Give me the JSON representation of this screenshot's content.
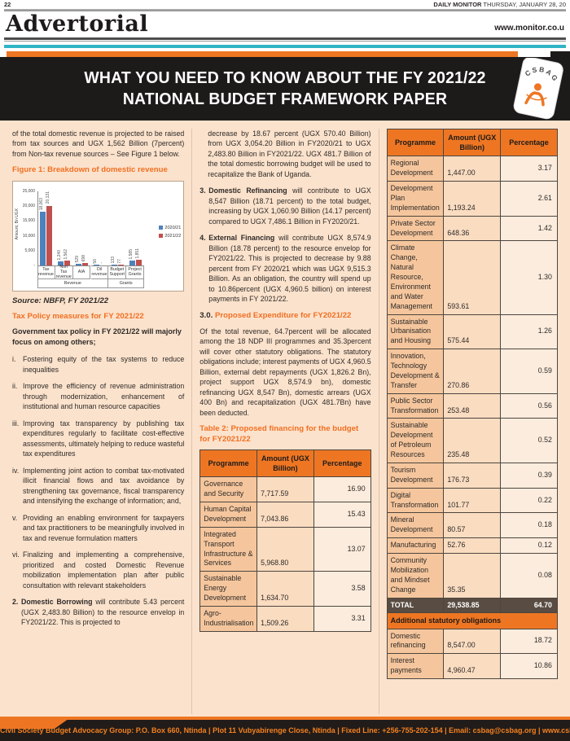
{
  "masthead": {
    "page_number": "22",
    "paper_name": "DAILY MONITOR",
    "date": "THURSDAY, JANUARY 28, 20",
    "section": "Advertorial",
    "website": "www.monitor.co.u"
  },
  "banner": {
    "title": "WHAT YOU NEED TO KNOW ABOUT THE FY 2021/22 NATIONAL BUDGET FRAMEWORK PAPER",
    "logo_text": "CSBAG"
  },
  "colors": {
    "accent_orange": "#ee7623",
    "heading_orange": "#f26f21",
    "banner_black": "#1d1b1a",
    "content_peach": "#fbe2cc",
    "table_total_brown": "#594c42",
    "teal_rule": "#2fb4c6",
    "bar_blue": "#4f81bd",
    "bar_red": "#c0504d"
  },
  "left_column": {
    "intro": "of the total domestic revenue is projected to be raised from tax sources and UGX 1,562 Billion (7percent) from Non-tax revenue sources – See Figure 1 below.",
    "figure_heading": "Figure 1: Breakdown of domestic revenue",
    "source": "Source: NBFP, FY 2021/22",
    "tax_policy_heading": "Tax Policy measures for FY 2021/22",
    "tax_policy_lead": "Government tax policy in FY 2021/22 will majorly focus on among others;",
    "policy_items": [
      {
        "num": "i.",
        "text": "Fostering equity of the tax systems to reduce inequalities"
      },
      {
        "num": "ii.",
        "text": "Improve the efficiency of revenue administration through modernization, enhancement of institutional and human resource capacities"
      },
      {
        "num": "iii.",
        "text": "Improving tax transparency by publishing tax expenditures regularly to facilitate cost-effective assessments, ultimately helping to reduce wasteful tax expenditures"
      },
      {
        "num": "iv.",
        "text": "Implementing joint action to combat tax-motivated illicit financial flows and tax avoidance by strengthening tax governance, fiscal transparency and intensifying the exchange of information; and,"
      },
      {
        "num": "v.",
        "text": "Providing an enabling environment for taxpayers and tax practitioners to be meaningfully involved in tax and revenue formulation matters"
      },
      {
        "num": "vi.",
        "text": "Finalizing and implementing a comprehensive, prioritized and costed Domestic Revenue mobilization implementation plan after public consultation with relevant stakeholders"
      }
    ],
    "numbered_item": {
      "num": "2.",
      "bold": "Domestic Borrowing",
      "text": " will contribute 5.43 percent (UGX 2,483.80 Billion) to the resource envelop in FY2021/22. This is projected to"
    }
  },
  "chart_data": {
    "type": "bar",
    "title": "Figure 1: Breakdown of domestic revenue",
    "ylabel": "Amount, Bn UGX",
    "ylim": [
      0,
      25000
    ],
    "yticks": [
      "25,000",
      "20,000",
      "15,000",
      "10,000",
      "5,000",
      "-"
    ],
    "categories": [
      "Tax revenue",
      "Non Tax revenue",
      "AIA",
      "Oil revenue",
      "Budget Support",
      "Project Grants"
    ],
    "groups": [
      {
        "label": "Revenue",
        "span": 4
      },
      {
        "label": "Grants",
        "span": 2
      }
    ],
    "legend_position": "right",
    "grid": false,
    "series": [
      {
        "name": "2020/21",
        "color": "#4f81bd",
        "values": [
          18063,
          1240,
          529,
          56,
          133,
          1585
        ],
        "labels": [
          "18,063",
          "1,240",
          "529",
          "56",
          "133",
          "1,585"
        ]
      },
      {
        "name": "2021/22",
        "color": "#c0504d",
        "values": [
          20131,
          1562,
          698,
          0,
          77,
          1851
        ],
        "labels": [
          "20,131",
          "1,562",
          "698",
          "-",
          "77",
          "1,851"
        ]
      }
    ],
    "source": "Source: NBFP, FY 2021/22"
  },
  "middle_column": {
    "continuation": "decrease by 18.67 percent (UGX 570.40 Billion) from UGX 3,054.20 Billion in FY2020/21 to UGX 2,483.80 Billion in FY2021/22. UGX 481.7 Billion of the total domestic borrowing budget will be used to recapitalize the Bank of Uganda.",
    "numbered_items": [
      {
        "num": "3.",
        "bold": "Domestic Refinancing",
        "text": " will contribute to UGX 8,547 Billion (18.71 percent) to the total budget, increasing by UGX 1,060.90 Billion (14.17 percent) compared to UGX 7,486.1 Billion in FY2020/21."
      },
      {
        "num": "4.",
        "bold": "External Financing",
        "text": " will contribute UGX 8,574.9 Billion (18.78 percent) to the resource envelop for FY2021/22. This is projected to decrease by 9.88 percent from FY 2020/21 which was UGX 9,515.3 Billion. As an obligation, the country will spend up to 10.86percent (UGX 4,960.5 billion) on interest payments in FY 2021/22."
      }
    ],
    "section_heading": {
      "num": "3.0.",
      "text": "Proposed Expenditure for FY2021/22"
    },
    "expenditure_paragraph": "Of the total revenue, 64.7percent will be allocated among the 18 NDP III programmes and 35.3percent will cover other statutory obligations. The statutory obligations include; interest payments of UGX 4,960.5 Billion, external debt repayments (UGX 1,826.2 Bn), project support UGX 8,574.9 bn), domestic refinancing UGX 8,547 Bn), domestic arrears (UGX 400 Bn) and recapitalization (UGX 481.7Bn) have been deducted.",
    "table_heading": "Table 2: Proposed financing for the budget for FY2021/22"
  },
  "budget_table": {
    "headers": [
      "Programme",
      "Amount (UGX Billion)",
      "Percentage"
    ],
    "left_rows": [
      [
        "Governance and Security",
        "7,717.59",
        "16.90"
      ],
      [
        "Human Capital Development",
        "7,043.86",
        "15.43"
      ],
      [
        "Integrated Transport Infrastructure & Services",
        "5,968.80",
        "13.07"
      ],
      [
        "Sustainable Energy Development",
        "1,634.70",
        "3.58"
      ],
      [
        "Agro-Industrialisation",
        "1,509.26",
        "3.31"
      ]
    ],
    "right_rows": [
      [
        "Regional Development",
        "1,447.00",
        "3.17"
      ],
      [
        "Development Plan Implementation",
        "1,193.24",
        "2.61"
      ],
      [
        "Private Sector Development",
        "648.36",
        "1.42"
      ],
      [
        "Climate Change, Natural Resource, Environment and Water Management",
        "593.61",
        "1.30"
      ],
      [
        "Sustainable Urbanisation and Housing",
        "575.44",
        "1.26"
      ],
      [
        "Innovation, Technology Development & Transfer",
        "270.86",
        "0.59"
      ],
      [
        "Public Sector Transformation",
        "253.48",
        "0.56"
      ],
      [
        "Sustainable Development of Petroleum Resources",
        "235.48",
        "0.52"
      ],
      [
        "Tourism Development",
        "176.73",
        "0.39"
      ],
      [
        "Digital Transformation",
        "101.77",
        "0.22"
      ],
      [
        "Mineral Development",
        "80.57",
        "0.18"
      ],
      [
        "Manufacturing",
        "52.76",
        "0.12"
      ],
      [
        "Community Mobilization and Mindset Change",
        "35.35",
        "0.08"
      ]
    ],
    "total_row": {
      "label": "TOTAL",
      "amount": "29,538.85",
      "percentage": "64.70"
    },
    "additional_heading": "Additional statutory obligations",
    "additional_rows": [
      [
        "Domestic refinancing",
        "8,547.00",
        "18.72"
      ],
      [
        "Interest payments",
        "4,960.47",
        "10.86"
      ]
    ]
  },
  "footer": {
    "text": "Civil Society Budget Advocacy Group:   P.O. Box 660, Ntinda | Plot 11 Vubyabirenge Close, Ntinda | Fixed Line: +256-755-202-154 | Email: csbag@csbag.org | www.csbag.org"
  }
}
